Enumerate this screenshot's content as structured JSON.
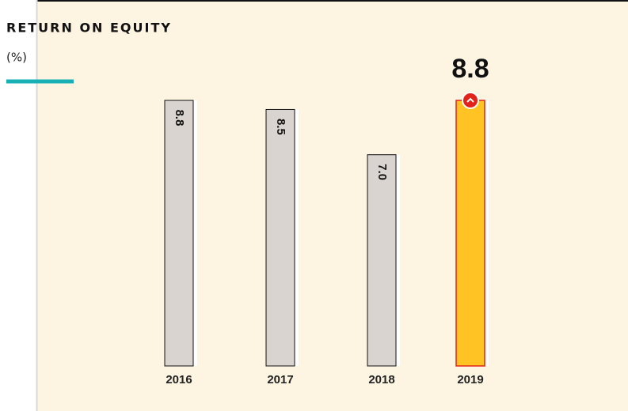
{
  "chart_data": {
    "type": "bar",
    "title": "RETURN ON EQUITY",
    "subtitle": "(%)",
    "categories": [
      "2016",
      "2017",
      "2018",
      "2019"
    ],
    "values": [
      8.8,
      8.5,
      7.0,
      8.8
    ],
    "value_labels": [
      "8.8",
      "8.5",
      "7.0",
      "8.8"
    ],
    "colors": [
      "#d9d4cf",
      "#d9d4cf",
      "#d9d4cf",
      "#ffc423"
    ],
    "ylim": [
      0,
      8.8
    ]
  }
}
